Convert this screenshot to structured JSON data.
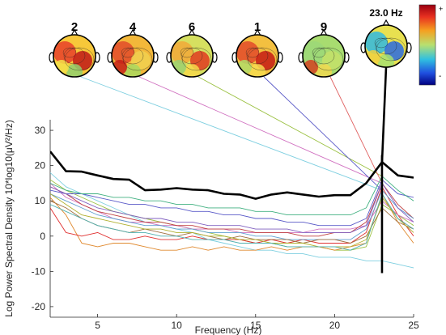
{
  "chart_data": {
    "type": "line",
    "xlabel": "Frequency (Hz)",
    "ylabel": "Log Power Spectral Density 10*log10(μV²/Hz)",
    "xlim": [
      2,
      25
    ],
    "ylim": [
      -23,
      33
    ],
    "x_ticks": [
      5,
      10,
      15,
      20,
      25
    ],
    "y_ticks": [
      -20,
      -10,
      0,
      10,
      20,
      30
    ],
    "grid": false,
    "marked_frequency_hz": 23,
    "marked_frequency_label": "23.0 Hz",
    "x": [
      2,
      3,
      4,
      5,
      6,
      7,
      8,
      9,
      10,
      11,
      12,
      13,
      14,
      15,
      16,
      17,
      18,
      19,
      20,
      21,
      22,
      23,
      24,
      25
    ],
    "series": [
      {
        "role": "mean",
        "color": "#000000",
        "values": [
          24,
          18.4,
          18.3,
          17.2,
          16.2,
          16,
          13,
          13.2,
          13.6,
          13.2,
          13,
          12,
          11.8,
          10.6,
          11.8,
          12.4,
          11.8,
          11.2,
          11.6,
          11.6,
          15,
          21,
          17.2,
          16.6
        ]
      },
      {
        "color": "#7ecfe0",
        "values": [
          18,
          14,
          12,
          10,
          8,
          6,
          4,
          3,
          2,
          1,
          -1,
          -2,
          -3,
          -4,
          -4,
          -5,
          -5,
          -6,
          -6,
          -6,
          -7,
          -7,
          -8,
          -9
        ]
      },
      {
        "color": "#9ac040",
        "values": [
          16,
          13,
          11,
          9,
          7,
          6,
          5,
          4,
          3,
          2,
          1,
          0,
          -1,
          -2,
          -2,
          -3,
          -3,
          -3,
          -4,
          -4,
          -3,
          9,
          6,
          3
        ]
      },
      {
        "color": "#e08a30",
        "values": [
          11,
          6,
          -2,
          -3,
          -2,
          -2,
          -3,
          -4,
          -4,
          -3,
          -4,
          -3,
          -4,
          -4,
          -3,
          -4,
          -3,
          -3,
          -4,
          -3,
          -2,
          12,
          4,
          -2
        ]
      },
      {
        "color": "#e03030",
        "values": [
          8,
          1,
          0,
          1,
          -1,
          -1,
          0,
          -1,
          -1,
          0,
          -1,
          -1,
          -1,
          -2,
          -1,
          -2,
          -1,
          -2,
          -2,
          -2,
          1,
          14,
          6,
          0
        ]
      },
      {
        "color": "#d070c0",
        "values": [
          15,
          11,
          9,
          7,
          5,
          4,
          4,
          3,
          3,
          2,
          2,
          2,
          1,
          1,
          1,
          1,
          1,
          2,
          2,
          2,
          3,
          10,
          6,
          4
        ]
      },
      {
        "color": "#5a5ac8",
        "values": [
          13,
          12,
          12,
          11,
          10,
          9,
          9,
          8,
          8,
          7,
          7,
          6,
          6,
          5,
          5,
          4,
          4,
          3,
          3,
          3,
          5,
          16,
          12,
          11
        ]
      },
      {
        "color": "#40b080",
        "values": [
          15,
          13,
          12,
          12,
          11,
          11,
          10,
          10,
          9,
          9,
          8,
          8,
          8,
          7,
          7,
          6,
          6,
          6,
          6,
          6,
          8,
          17,
          13,
          10
        ]
      },
      {
        "color": "#c04040",
        "values": [
          14,
          12,
          9,
          7,
          6,
          5,
          4,
          4,
          3,
          3,
          2,
          2,
          2,
          1,
          1,
          1,
          0,
          0,
          1,
          1,
          4,
          15,
          9,
          5
        ]
      },
      {
        "color": "#60a0d0",
        "values": [
          12,
          10,
          8,
          6,
          5,
          4,
          3,
          3,
          2,
          2,
          1,
          1,
          1,
          0,
          0,
          -1,
          -1,
          -1,
          -1,
          -1,
          2,
          13,
          8,
          5
        ]
      },
      {
        "color": "#a07040",
        "values": [
          10,
          8,
          5,
          3,
          2,
          1,
          2,
          1,
          0,
          1,
          0,
          -1,
          0,
          -1,
          -1,
          -1,
          -2,
          -1,
          -1,
          -2,
          0,
          8,
          4,
          2
        ]
      },
      {
        "color": "#b0b030",
        "values": [
          12,
          9,
          6,
          5,
          4,
          3,
          2,
          2,
          1,
          1,
          0,
          0,
          -1,
          -1,
          -2,
          -2,
          -2,
          -3,
          -3,
          -3,
          -1,
          11,
          5,
          1
        ]
      },
      {
        "color": "#8060c0",
        "values": [
          14,
          12,
          10,
          8,
          7,
          6,
          5,
          5,
          4,
          4,
          3,
          3,
          3,
          2,
          2,
          2,
          1,
          1,
          1,
          1,
          3,
          15,
          8,
          4
        ]
      },
      {
        "color": "#50b0b0",
        "values": [
          9,
          7,
          5,
          3,
          2,
          1,
          1,
          0,
          0,
          -1,
          -1,
          -1,
          -2,
          -2,
          -2,
          -3,
          -3,
          -3,
          -3,
          -4,
          -2,
          12,
          5,
          2
        ]
      }
    ],
    "scalp_maps": [
      {
        "label": "2",
        "connect_color": "#7ecfe0"
      },
      {
        "label": "4",
        "connect_color": "#d070c0"
      },
      {
        "label": "6",
        "connect_color": "#9ac040"
      },
      {
        "label": "1",
        "connect_color": "#5a5ac8"
      },
      {
        "label": "9",
        "connect_color": "#e06060"
      },
      {
        "label": "23.0 Hz",
        "connect_color": "#000000"
      }
    ],
    "colorbar": {
      "max_label": "+",
      "min_label": "-"
    }
  }
}
